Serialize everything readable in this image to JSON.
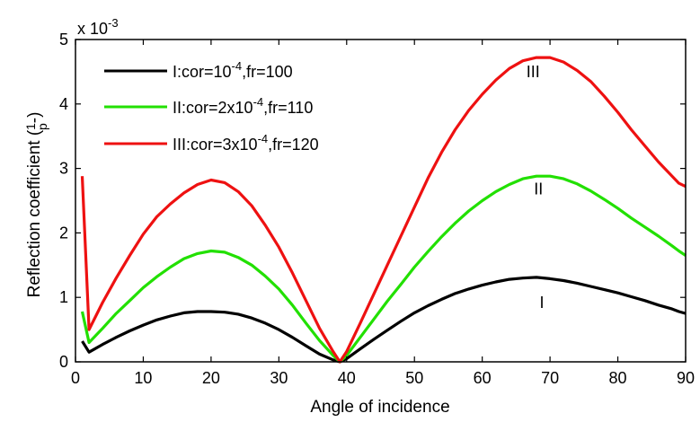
{
  "chart_data": {
    "type": "line",
    "xlabel": "Angle of incidence",
    "ylabel": "Reflection coefficient (",
    "ylabel_symbol_num": "1",
    "ylabel_symbol_sub": "p",
    "ylabel_symbol_tail": "-)",
    "xlim": [
      0,
      90
    ],
    "ylim": [
      0,
      5
    ],
    "y_scale_label": "x 10",
    "y_scale_exp": "-3",
    "x_ticks": [
      0,
      10,
      20,
      30,
      40,
      50,
      60,
      70,
      80,
      90
    ],
    "y_ticks": [
      0,
      1,
      2,
      3,
      4,
      5
    ],
    "grid": false,
    "legend_position": "top-left",
    "x": [
      1,
      2,
      4,
      6,
      8,
      10,
      12,
      14,
      16,
      18,
      20,
      22,
      24,
      26,
      28,
      30,
      32,
      34,
      36,
      38,
      39,
      40,
      42,
      44,
      46,
      48,
      50,
      52,
      54,
      56,
      58,
      60,
      62,
      64,
      66,
      68,
      70,
      72,
      74,
      76,
      78,
      80,
      82,
      84,
      86,
      88,
      89,
      90
    ],
    "series": [
      {
        "name": "I:cor=10-4,fr=100",
        "legend_main": "I:cor=10",
        "legend_exp": "-4",
        "legend_tail": ",fr=100",
        "color": "#000000",
        "values": [
          0.32,
          0.15,
          0.27,
          0.38,
          0.48,
          0.57,
          0.65,
          0.71,
          0.76,
          0.78,
          0.78,
          0.77,
          0.74,
          0.68,
          0.6,
          0.5,
          0.38,
          0.25,
          0.12,
          0.03,
          0.0,
          0.05,
          0.2,
          0.35,
          0.49,
          0.63,
          0.76,
          0.87,
          0.97,
          1.06,
          1.13,
          1.19,
          1.24,
          1.28,
          1.3,
          1.31,
          1.29,
          1.26,
          1.22,
          1.17,
          1.12,
          1.07,
          1.01,
          0.95,
          0.88,
          0.82,
          0.78,
          0.75
        ]
      },
      {
        "name": "II:cor=2x10-4,fr=110",
        "legend_main": "II:cor=2x10",
        "legend_exp": "-4",
        "legend_tail": ",fr=110",
        "color": "#22e000",
        "values": [
          0.78,
          0.3,
          0.52,
          0.75,
          0.95,
          1.15,
          1.32,
          1.47,
          1.6,
          1.68,
          1.72,
          1.7,
          1.62,
          1.5,
          1.33,
          1.13,
          0.88,
          0.6,
          0.33,
          0.1,
          0.0,
          0.1,
          0.38,
          0.66,
          0.94,
          1.2,
          1.47,
          1.71,
          1.94,
          2.15,
          2.34,
          2.5,
          2.64,
          2.75,
          2.84,
          2.88,
          2.88,
          2.84,
          2.76,
          2.65,
          2.52,
          2.38,
          2.23,
          2.09,
          1.95,
          1.8,
          1.72,
          1.65
        ]
      },
      {
        "name": "III:cor=3x10-4,fr=120",
        "legend_main": "III:cor=3x10",
        "legend_exp": "-4",
        "legend_tail": ",fr=120",
        "color": "#ee1111",
        "values": [
          2.88,
          0.5,
          0.92,
          1.3,
          1.65,
          1.98,
          2.25,
          2.45,
          2.62,
          2.75,
          2.82,
          2.78,
          2.64,
          2.42,
          2.12,
          1.78,
          1.38,
          0.95,
          0.52,
          0.16,
          0.0,
          0.16,
          0.6,
          1.05,
          1.5,
          1.95,
          2.4,
          2.85,
          3.25,
          3.6,
          3.9,
          4.15,
          4.37,
          4.55,
          4.67,
          4.72,
          4.72,
          4.65,
          4.52,
          4.35,
          4.12,
          3.87,
          3.6,
          3.35,
          3.1,
          2.88,
          2.77,
          2.72
        ]
      }
    ],
    "annotations": [
      {
        "text": "III",
        "x": 67.5,
        "y": 4.5
      },
      {
        "text": "II",
        "x": 68.3,
        "y": 2.68
      },
      {
        "text": "I",
        "x": 68.8,
        "y": 0.92
      }
    ]
  }
}
